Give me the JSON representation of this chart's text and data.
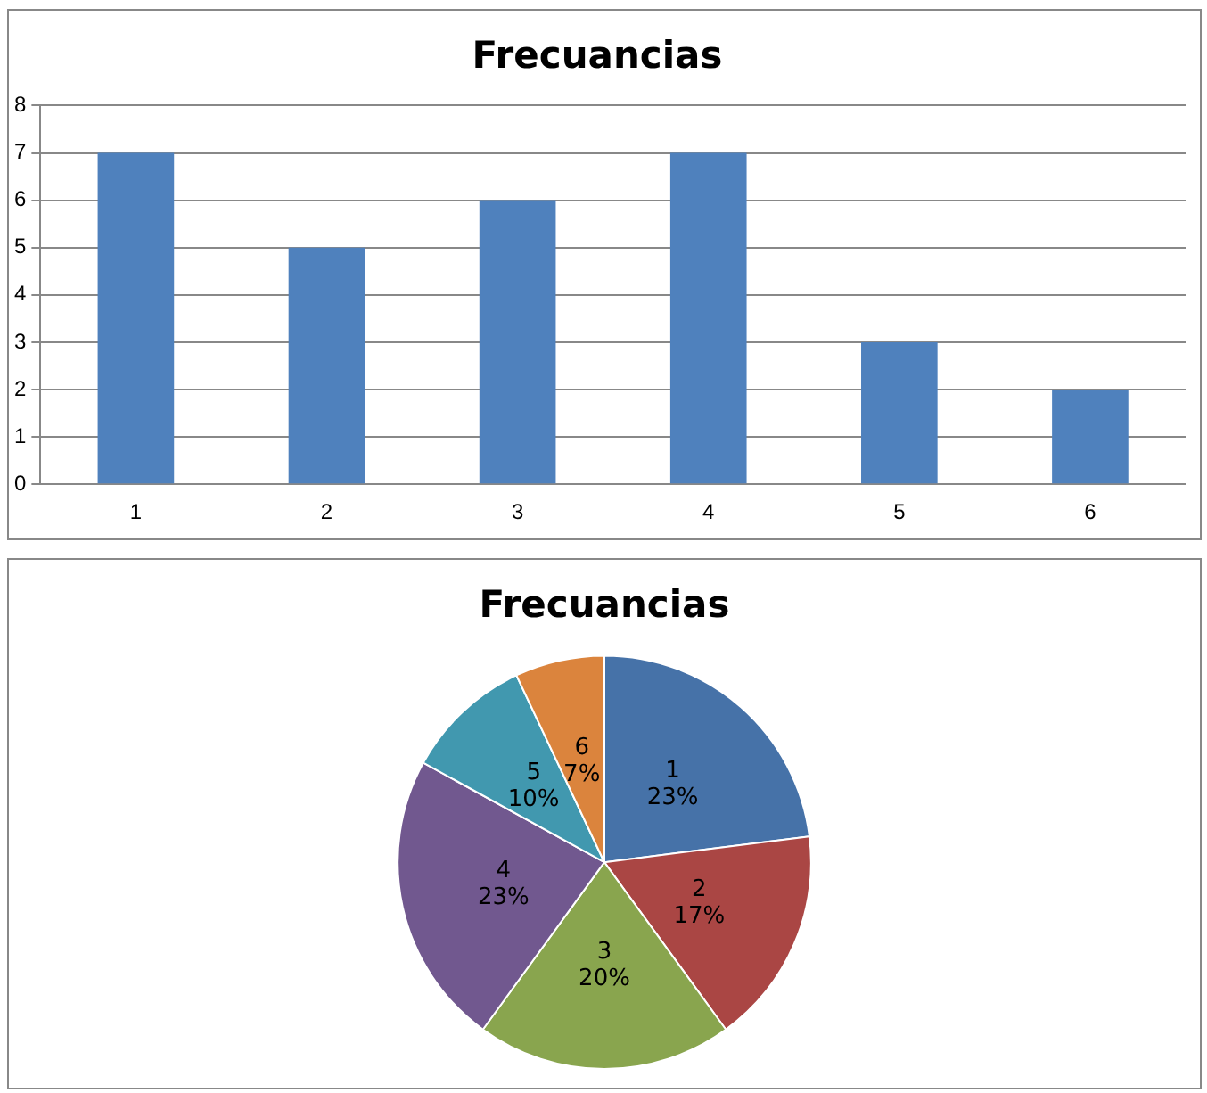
{
  "chart_data": [
    {
      "type": "bar",
      "title": "Frecuancias",
      "categories": [
        "1",
        "2",
        "3",
        "4",
        "5",
        "6"
      ],
      "values": [
        7,
        5,
        6,
        7,
        3,
        2
      ],
      "color": "#4f81bd",
      "ylim": [
        0,
        8
      ],
      "yticks": [
        0,
        1,
        2,
        3,
        4,
        5,
        6,
        7,
        8
      ],
      "grid": "y"
    },
    {
      "type": "pie",
      "title": "Frecuancias",
      "categories": [
        "1",
        "2",
        "3",
        "4",
        "5",
        "6"
      ],
      "values": [
        23,
        17,
        20,
        23,
        10,
        7
      ],
      "value_labels": [
        "23%",
        "17%",
        "20%",
        "23%",
        "10%",
        "7%"
      ],
      "colors": [
        "#4672a8",
        "#aa4644",
        "#89a54e",
        "#71588f",
        "#4198af",
        "#db843d"
      ]
    }
  ]
}
